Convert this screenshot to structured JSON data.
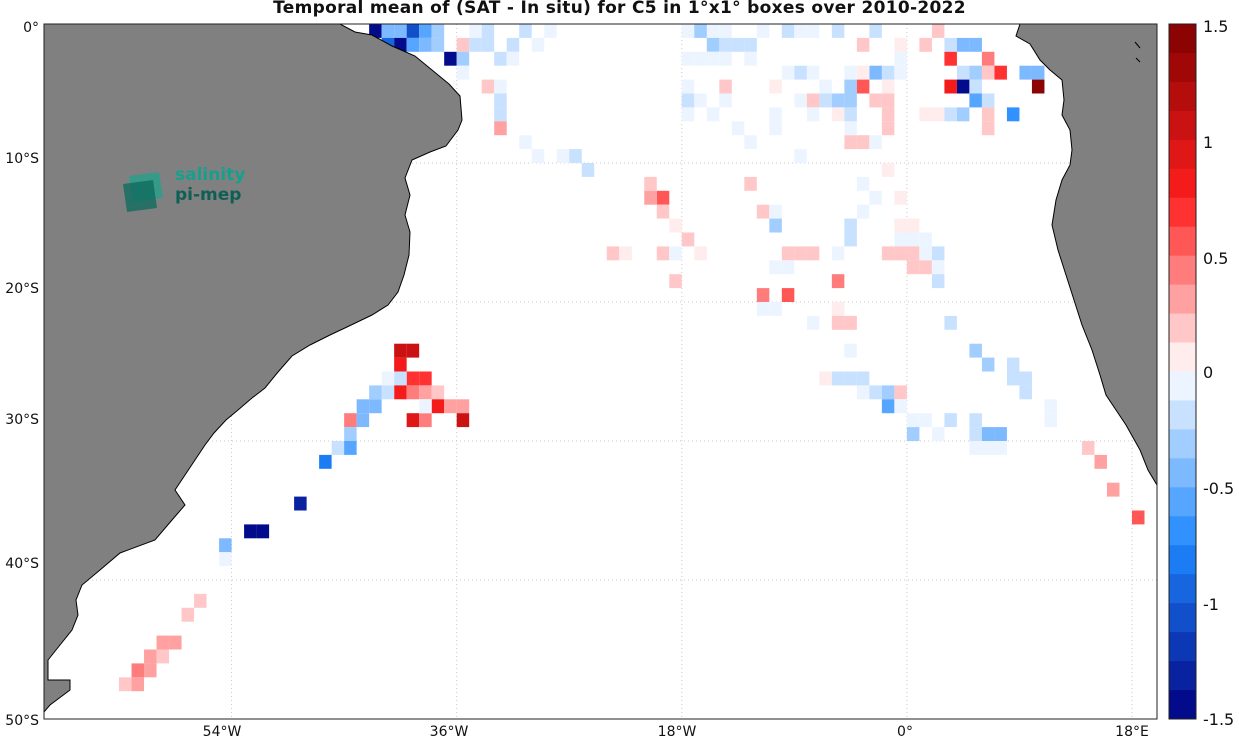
{
  "title": "Temporal mean of (SAT - In situ) for C5 in 1°x1° boxes over 2010-2022",
  "logo": {
    "line1": "salinity",
    "line2": "pi-mep"
  },
  "axes": {
    "y_ticks": [
      "0°",
      "10°S",
      "20°S",
      "30°S",
      "40°S",
      "50°S"
    ],
    "x_ticks": [
      "54°W",
      "36°W",
      "18°W",
      "0°",
      "18°E"
    ]
  },
  "colorbar": {
    "ticks": [
      "1.5",
      "1",
      "0.5",
      "0",
      "-0.5",
      "-1",
      "-1.5"
    ],
    "range": [
      -1.5,
      1.5
    ]
  },
  "colors": {
    "land": "#808080",
    "coast": "#000000",
    "grid": "#c8c8c8"
  },
  "chart_data": {
    "type": "heatmap",
    "region": {
      "lon": [
        -69,
        20
      ],
      "lat": [
        -50,
        0
      ]
    },
    "cell_size_deg": 1,
    "color_scale": {
      "min": -1.5,
      "max": 1.5,
      "colormap": "blue-white-red"
    },
    "cells": [
      [
        -42.5,
        -0.5,
        -1.4
      ],
      [
        -41.5,
        -0.5,
        -0.5
      ],
      [
        -40.5,
        -0.5,
        -0.4
      ],
      [
        -39.5,
        -0.5,
        -1.1
      ],
      [
        -38.5,
        -0.5,
        -0.6
      ],
      [
        -37.5,
        -0.5,
        -0.3
      ],
      [
        -34.5,
        -0.5,
        -0.1
      ],
      [
        -33.5,
        -0.5,
        -0.2
      ],
      [
        -30.5,
        -0.5,
        -0.2
      ],
      [
        -28.5,
        -0.5,
        -0.1
      ],
      [
        -41.5,
        -1.5,
        -1.0
      ],
      [
        -40.5,
        -1.5,
        -1.5
      ],
      [
        -39.5,
        -1.5,
        -0.6
      ],
      [
        -38.5,
        -1.5,
        -0.5
      ],
      [
        -37.5,
        -1.5,
        -0.3
      ],
      [
        -35.5,
        -1.5,
        0.2
      ],
      [
        -34.5,
        -1.5,
        -0.2
      ],
      [
        -33.5,
        -1.5,
        -0.2
      ],
      [
        -31.5,
        -1.5,
        -0.2
      ],
      [
        -29.5,
        -1.5,
        -0.1
      ],
      [
        -36.5,
        -2.5,
        -1.4
      ],
      [
        -35.5,
        -2.5,
        -0.3
      ],
      [
        -32.5,
        -2.5,
        -0.2
      ],
      [
        -31.5,
        -2.5,
        -0.1
      ],
      [
        -35.5,
        -3.5,
        -0.1
      ],
      [
        -33.5,
        -4.5,
        0.2
      ],
      [
        -32.5,
        -4.5,
        -0.1
      ],
      [
        -32.5,
        -5.5,
        -0.2
      ],
      [
        -32.5,
        -6.5,
        -0.2
      ],
      [
        -32.5,
        -7.5,
        0.3
      ],
      [
        -30.5,
        -8.5,
        -0.1
      ],
      [
        -29.5,
        -9.5,
        -0.1
      ],
      [
        -27.5,
        -9.5,
        -0.1
      ],
      [
        -26.5,
        -9.5,
        -0.2
      ],
      [
        -25.5,
        -10.5,
        -0.2
      ],
      [
        -15.5,
        -0.5,
        -0.1
      ],
      [
        -14.5,
        -0.5,
        -0.1
      ],
      [
        -17.5,
        -0.5,
        -0.1
      ],
      [
        -16.5,
        -0.5,
        -0.3
      ],
      [
        -15.5,
        -1.5,
        -0.3
      ],
      [
        -14.5,
        -1.5,
        -0.2
      ],
      [
        -13.5,
        -1.5,
        -0.2
      ],
      [
        -12.5,
        -1.5,
        -0.2
      ],
      [
        -11.5,
        -0.5,
        -0.1
      ],
      [
        -9.5,
        -0.5,
        -0.2
      ],
      [
        -8.5,
        -0.5,
        -0.1
      ],
      [
        -7.5,
        -0.5,
        -0.1
      ],
      [
        -5.5,
        -0.5,
        -0.2
      ],
      [
        -2.5,
        -0.5,
        -0.2
      ],
      [
        -3.5,
        -1.5,
        0.2
      ],
      [
        -0.5,
        -1.5,
        0.1
      ],
      [
        1.5,
        -1.5,
        0.2
      ],
      [
        2.5,
        -0.5,
        0.2
      ],
      [
        3.5,
        -1.5,
        -0.2
      ],
      [
        4.5,
        -1.5,
        -0.5
      ],
      [
        5.5,
        -1.5,
        -0.5
      ],
      [
        -17.5,
        -2.5,
        -0.1
      ],
      [
        -16.5,
        -2.5,
        -0.1
      ],
      [
        -15.5,
        -2.5,
        -0.1
      ],
      [
        -14.5,
        -2.5,
        -0.1
      ],
      [
        -12.5,
        -2.5,
        -0.1
      ],
      [
        -9.5,
        -3.5,
        -0.1
      ],
      [
        -8.5,
        -3.5,
        -0.2
      ],
      [
        -7.5,
        -3.5,
        -0.1
      ],
      [
        -4.5,
        -3.5,
        -0.1
      ],
      [
        -2.5,
        -3.5,
        -0.4
      ],
      [
        -1.5,
        -3.5,
        -0.2
      ],
      [
        -1.5,
        -4.5,
        0.1
      ],
      [
        -3.5,
        -3.5,
        0.1
      ],
      [
        -0.5,
        -3.5,
        -0.1
      ],
      [
        -0.5,
        -2.5,
        -0.1
      ],
      [
        3.5,
        -2.5,
        0.7
      ],
      [
        4.5,
        -3.5,
        -0.2
      ],
      [
        5.5,
        -3.5,
        -0.3
      ],
      [
        6.5,
        -2.5,
        0.4
      ],
      [
        7.5,
        -3.5,
        0.7
      ],
      [
        9.5,
        -3.5,
        -0.5
      ],
      [
        10.5,
        -3.5,
        -0.4
      ],
      [
        3.5,
        -4.5,
        0.8
      ],
      [
        4.5,
        -4.5,
        -1.5
      ],
      [
        5.5,
        -4.5,
        -0.2
      ],
      [
        6.5,
        -3.5,
        0.2
      ],
      [
        10.5,
        -4.5,
        1.4
      ],
      [
        -17.5,
        -4.5,
        -0.1
      ],
      [
        -14.5,
        -4.5,
        0.2
      ],
      [
        -10.5,
        -4.5,
        0.1
      ],
      [
        -6.5,
        -5.5,
        -0.2
      ],
      [
        -5.5,
        -5.5,
        -0.3
      ],
      [
        -4.5,
        -4.5,
        -0.3
      ],
      [
        -3.5,
        -4.5,
        0.6
      ],
      [
        -2.5,
        -5.5,
        0.2
      ],
      [
        -1.5,
        -5.5,
        0.2
      ],
      [
        -4.5,
        -5.5,
        -0.3
      ],
      [
        -6.5,
        -4.5,
        -0.1
      ],
      [
        -17.5,
        -5.5,
        -0.2
      ],
      [
        -16.5,
        -5.5,
        -0.1
      ],
      [
        -15.5,
        -6.5,
        -0.1
      ],
      [
        -14.5,
        -5.5,
        -0.1
      ],
      [
        -10.5,
        -6.5,
        -0.1
      ],
      [
        -8.5,
        -5.5,
        -0.1
      ],
      [
        -7.5,
        -5.5,
        0.2
      ],
      [
        -7.5,
        -6.5,
        -0.1
      ],
      [
        -5.5,
        -6.5,
        0.1
      ],
      [
        -4.5,
        -6.5,
        -0.2
      ],
      [
        -1.5,
        -6.5,
        0.2
      ],
      [
        -1.5,
        -7.5,
        0.2
      ],
      [
        1.5,
        -6.5,
        0.1
      ],
      [
        2.5,
        -6.5,
        0.1
      ],
      [
        3.5,
        -6.5,
        -0.2
      ],
      [
        4.5,
        -6.5,
        -0.3
      ],
      [
        5.5,
        -5.5,
        -0.6
      ],
      [
        6.5,
        -5.5,
        -0.2
      ],
      [
        6.5,
        -6.5,
        0.2
      ],
      [
        6.5,
        -7.5,
        0.2
      ],
      [
        8.5,
        -6.5,
        -0.7
      ],
      [
        -17.5,
        -6.5,
        -0.1
      ],
      [
        -13.5,
        -7.5,
        -0.1
      ],
      [
        -12.5,
        -8.5,
        -0.1
      ],
      [
        -10.5,
        -7.5,
        -0.1
      ],
      [
        -4.5,
        -8.5,
        0.2
      ],
      [
        -3.5,
        -8.5,
        0.2
      ],
      [
        -2.5,
        -8.5,
        -0.1
      ],
      [
        -4.5,
        -7.5,
        -0.1
      ],
      [
        -8.5,
        -9.5,
        -0.1
      ],
      [
        -20.5,
        -11.5,
        0.2
      ],
      [
        -19.5,
        -12.5,
        0.6
      ],
      [
        -20.5,
        -12.5,
        0.3
      ],
      [
        -19.5,
        -13.5,
        0.2
      ],
      [
        -18.5,
        -14.5,
        0.1
      ],
      [
        -17.5,
        -15.5,
        0.2
      ],
      [
        -16.5,
        -16.5,
        0.1
      ],
      [
        -12.5,
        -11.5,
        0.2
      ],
      [
        -11.5,
        -13.5,
        0.2
      ],
      [
        -10.5,
        -13.5,
        -0.1
      ],
      [
        -10.5,
        -14.5,
        -0.3
      ],
      [
        -19.5,
        -16.5,
        0.2
      ],
      [
        -18.5,
        -16.5,
        -0.1
      ],
      [
        -23.5,
        -16.5,
        0.2
      ],
      [
        -22.5,
        -16.5,
        0.1
      ],
      [
        -9.5,
        -16.5,
        0.2
      ],
      [
        -8.5,
        -16.5,
        0.2
      ],
      [
        -7.5,
        -16.5,
        0.2
      ],
      [
        -10.5,
        -17.5,
        -0.1
      ],
      [
        -9.5,
        -17.5,
        -0.1
      ],
      [
        -18.5,
        -18.5,
        0.2
      ],
      [
        -11.5,
        -19.5,
        0.4
      ],
      [
        -11.5,
        -20.5,
        -0.1
      ],
      [
        -10.5,
        -20.5,
        -0.1
      ],
      [
        -9.5,
        -19.5,
        0.5
      ],
      [
        -5.5,
        -18.5,
        0.4
      ],
      [
        -5.5,
        -20.5,
        0.1
      ],
      [
        -7.5,
        -21.5,
        -0.1
      ],
      [
        -5.5,
        -21.5,
        0.2
      ],
      [
        -4.5,
        -21.5,
        0.2
      ],
      [
        -2.5,
        -12.5,
        -0.1
      ],
      [
        -3.5,
        -13.5,
        -0.1
      ],
      [
        -4.5,
        -14.5,
        -0.2
      ],
      [
        -4.5,
        -15.5,
        -0.2
      ],
      [
        -3.5,
        -11.5,
        -0.1
      ],
      [
        -1.5,
        -10.5,
        0.1
      ],
      [
        -0.5,
        -12.5,
        0.1
      ],
      [
        -0.5,
        -14.5,
        0.1
      ],
      [
        0.5,
        -14.5,
        0.1
      ],
      [
        -0.5,
        -15.5,
        -0.1
      ],
      [
        0.5,
        -15.5,
        -0.1
      ],
      [
        1.5,
        -15.5,
        -0.1
      ],
      [
        -5.5,
        -16.5,
        -0.1
      ],
      [
        -1.5,
        -16.5,
        0.2
      ],
      [
        -0.5,
        -16.5,
        0.2
      ],
      [
        0.5,
        -16.5,
        0.2
      ],
      [
        1.5,
        -16.5,
        -0.1
      ],
      [
        2.5,
        -16.5,
        -0.2
      ],
      [
        0.5,
        -17.5,
        0.2
      ],
      [
        1.5,
        -17.5,
        0.2
      ],
      [
        2.5,
        -17.5,
        -0.1
      ],
      [
        2.5,
        -18.5,
        -0.2
      ],
      [
        3.5,
        -21.5,
        -0.2
      ],
      [
        5.5,
        -23.5,
        -0.3
      ],
      [
        6.5,
        -24.5,
        -0.3
      ],
      [
        8.5,
        -24.5,
        -0.2
      ],
      [
        8.5,
        -25.5,
        -0.2
      ],
      [
        9.5,
        -25.5,
        -0.2
      ],
      [
        9.5,
        -26.5,
        -0.2
      ],
      [
        11.5,
        -27.5,
        -0.1
      ],
      [
        11.5,
        -28.5,
        -0.1
      ],
      [
        -4.5,
        -23.5,
        -0.1
      ],
      [
        -6.5,
        -25.5,
        0.1
      ],
      [
        -5.5,
        -25.5,
        -0.2
      ],
      [
        -4.5,
        -25.5,
        -0.2
      ],
      [
        -3.5,
        -25.5,
        -0.2
      ],
      [
        -3.5,
        -26.5,
        -0.1
      ],
      [
        -2.5,
        -26.5,
        -0.2
      ],
      [
        -1.5,
        -26.5,
        -0.3
      ],
      [
        -0.5,
        -26.5,
        0.2
      ],
      [
        -1.5,
        -27.5,
        -0.6
      ],
      [
        -0.5,
        -27.5,
        -0.1
      ],
      [
        0.5,
        -28.5,
        -0.1
      ],
      [
        1.5,
        -28.5,
        -0.1
      ],
      [
        3.5,
        -28.5,
        -0.2
      ],
      [
        5.5,
        -28.5,
        -0.2
      ],
      [
        0.5,
        -29.5,
        -0.3
      ],
      [
        2.5,
        -29.5,
        -0.1
      ],
      [
        5.5,
        -29.5,
        -0.2
      ],
      [
        6.5,
        -29.5,
        -0.4
      ],
      [
        7.5,
        -29.5,
        -0.4
      ],
      [
        5.5,
        -30.5,
        -0.1
      ],
      [
        6.5,
        -30.5,
        -0.1
      ],
      [
        7.5,
        -30.5,
        -0.1
      ],
      [
        14.5,
        -30.5,
        0.2
      ],
      [
        15.5,
        -31.5,
        0.3
      ],
      [
        16.5,
        -33.5,
        0.3
      ],
      [
        18.5,
        -35.5,
        0.5
      ],
      [
        -40.5,
        -23.5,
        1.0
      ],
      [
        -39.5,
        -23.5,
        1.1
      ],
      [
        -40.5,
        -24.5,
        0.8
      ],
      [
        -39.5,
        -25.5,
        0.7
      ],
      [
        -38.5,
        -25.5,
        0.7
      ],
      [
        -40.5,
        -25.5,
        -0.2
      ],
      [
        -41.5,
        -25.5,
        -0.1
      ],
      [
        -40.5,
        -26.5,
        0.8
      ],
      [
        -39.5,
        -26.5,
        0.4
      ],
      [
        -41.5,
        -26.5,
        -0.2
      ],
      [
        -38.5,
        -26.5,
        0.3
      ],
      [
        -37.5,
        -26.5,
        0.2
      ],
      [
        -37.5,
        -27.5,
        0.8
      ],
      [
        -36.5,
        -27.5,
        0.3
      ],
      [
        -35.5,
        -27.5,
        0.3
      ],
      [
        -39.5,
        -28.5,
        0.9
      ],
      [
        -38.5,
        -28.5,
        0.4
      ],
      [
        -35.5,
        -28.5,
        1.0
      ],
      [
        -38.5,
        -27.5,
        -0.1
      ],
      [
        -42.5,
        -27.5,
        -0.5
      ],
      [
        -43.5,
        -27.5,
        -0.5
      ],
      [
        -42.5,
        -26.5,
        -0.3
      ],
      [
        -43.5,
        -28.5,
        -0.5
      ],
      [
        -44.5,
        -28.5,
        0.4
      ],
      [
        -44.5,
        -29.5,
        -0.3
      ],
      [
        -45.5,
        -30.5,
        -0.2
      ],
      [
        -44.5,
        -30.5,
        -0.6
      ],
      [
        -46.5,
        -31.5,
        -0.8
      ],
      [
        -48.5,
        -34.5,
        -1.3
      ],
      [
        -52.5,
        -36.5,
        -1.5
      ],
      [
        -51.5,
        -36.5,
        -1.5
      ],
      [
        -54.5,
        -37.5,
        -0.4
      ],
      [
        -54.5,
        -38.5,
        -0.1
      ],
      [
        -56.5,
        -41.5,
        0.2
      ],
      [
        -57.5,
        -42.5,
        0.2
      ],
      [
        -59.5,
        -44.5,
        0.3
      ],
      [
        -58.5,
        -44.5,
        0.3
      ],
      [
        -60.5,
        -45.5,
        0.3
      ],
      [
        -59.5,
        -45.5,
        0.2
      ],
      [
        -61.5,
        -46.5,
        0.4
      ],
      [
        -60.5,
        -46.5,
        0.3
      ],
      [
        -62.5,
        -47.5,
        0.2
      ],
      [
        -61.5,
        -47.5,
        0.3
      ]
    ]
  }
}
